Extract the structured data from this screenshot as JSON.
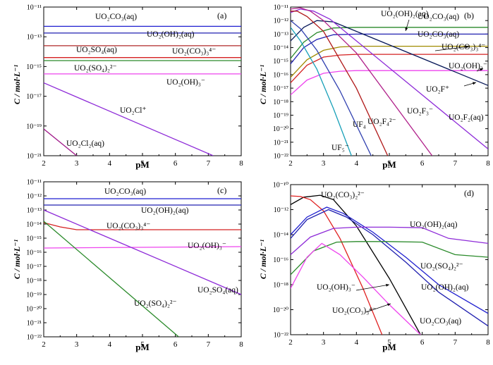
{
  "figure": {
    "xlabel": "pM",
    "ylabel": "C / mol·L⁻¹"
  },
  "chart_data": [
    {
      "panel": "(a)",
      "type": "line",
      "xlabel": "pM",
      "ylabel": "C / mol·L⁻¹",
      "xlim": [
        2,
        8
      ],
      "ylim_log10": [
        -21,
        -11
      ],
      "x_ticks": [
        2,
        3,
        4,
        5,
        6,
        7,
        8
      ],
      "y_ticks": [
        {
          "exp": -11,
          "label": "10⁻¹¹"
        },
        {
          "exp": -13,
          "label": "10⁻¹³"
        },
        {
          "exp": -15,
          "label": "10⁻¹⁵"
        },
        {
          "exp": -17,
          "label": "10⁻¹⁷"
        },
        {
          "exp": -19,
          "label": "10⁻¹⁹"
        },
        {
          "exp": -21,
          "label": "10⁻²¹"
        }
      ],
      "series": [
        {
          "name": "UO₂CO₃(aq)",
          "color": "#1f1fd0",
          "x": [
            2,
            8
          ],
          "log10_y": [
            -12.3,
            -12.3
          ]
        },
        {
          "name": "UO₂(OH)₂(aq)",
          "color": "#2020b0",
          "x": [
            2,
            8
          ],
          "log10_y": [
            -12.75,
            -12.75
          ]
        },
        {
          "name": "UO₂(CO₃)₃⁴⁻",
          "color": "#b02828",
          "x": [
            2,
            8
          ],
          "log10_y": [
            -13.6,
            -13.6
          ]
        },
        {
          "name": "UO₂SO₄(aq)",
          "color": "#d42020",
          "x": [
            2,
            8
          ],
          "log10_y": [
            -14.4,
            -14.4
          ]
        },
        {
          "name": "UO₂(SO₄)₂²⁻",
          "color": "#2a8a2a",
          "x": [
            2,
            8
          ],
          "log10_y": [
            -14.6,
            -14.6
          ]
        },
        {
          "name": "UO₂(OH)₃⁻",
          "color": "#ee44ee",
          "x": [
            2,
            8
          ],
          "log10_y": [
            -15.5,
            -15.5
          ]
        },
        {
          "name": "UO₂Cl⁺",
          "color": "#8e2bd8",
          "x": [
            2,
            7.15
          ],
          "log10_y": [
            -16.1,
            -21
          ]
        },
        {
          "name": "UO₂Cl₂(aq)",
          "color": "#a01a8a",
          "x": [
            2,
            3
          ],
          "log10_y": [
            -19.2,
            -21
          ]
        }
      ],
      "labels": [
        "UO₂CO₃(aq)",
        "UO₂(OH)₂(aq)",
        "UO₂SO₄(aq)",
        "UO₂(CO₃)₃⁴⁻",
        "UO₂(SO₄)₂²⁻",
        "UO₂(OH)₃⁻",
        "UO₂Cl⁺",
        "UO₂Cl₂(aq)"
      ]
    },
    {
      "panel": "(b)",
      "type": "line",
      "xlabel": "pM",
      "ylabel": "C / mol·L⁻¹",
      "xlim": [
        2,
        8
      ],
      "ylim_log10": [
        -22,
        -11
      ],
      "x_ticks": [
        2,
        3,
        4,
        5,
        6,
        7,
        8
      ],
      "y_ticks": [
        {
          "exp": -11,
          "label": "10⁻¹¹"
        },
        {
          "exp": -12,
          "label": "10⁻¹²"
        },
        {
          "exp": -13,
          "label": "10⁻¹³"
        },
        {
          "exp": -14,
          "label": "10⁻¹⁴"
        },
        {
          "exp": -15,
          "label": "10⁻¹⁵"
        },
        {
          "exp": -16,
          "label": "10⁻¹⁶"
        },
        {
          "exp": -17,
          "label": "10⁻¹⁷"
        },
        {
          "exp": -18,
          "label": "10⁻¹⁸"
        },
        {
          "exp": -19,
          "label": "10⁻¹⁹"
        },
        {
          "exp": -20,
          "label": "10⁻²⁰"
        },
        {
          "exp": -21,
          "label": "10⁻²¹"
        },
        {
          "exp": -22,
          "label": "10⁻²²"
        }
      ],
      "series": [
        {
          "name": "UO₂CO₃(aq)",
          "color": "#2a8a2a",
          "x": [
            2,
            2.4,
            2.8,
            3.3,
            4,
            8
          ],
          "log10_y": [
            -14.8,
            -13.6,
            -12.9,
            -12.55,
            -12.5,
            -12.5
          ]
        },
        {
          "name": "UO₂(OH)₂(aq)",
          "color": "#2020b0",
          "x": [
            2,
            2.4,
            2.8,
            3.3,
            4,
            8
          ],
          "log10_y": [
            -15.2,
            -14.0,
            -13.4,
            -13.05,
            -13.0,
            -13.0
          ]
        },
        {
          "name": "UO₂(CO₃)₃⁴⁻",
          "color": "#a08a00",
          "x": [
            2,
            2.5,
            3,
            3.5,
            4,
            8
          ],
          "log10_y": [
            -16.2,
            -14.9,
            -14.2,
            -13.95,
            -13.9,
            -13.9
          ]
        },
        {
          "name": "UO₂(OH)₃⁻",
          "color": "#d42020",
          "x": [
            2,
            2.5,
            3,
            3.5,
            4,
            8
          ],
          "log10_y": [
            -16.6,
            -15.3,
            -14.7,
            -14.55,
            -14.5,
            -14.5
          ]
        },
        {
          "name": "UO₂(SO₄)₂²⁻",
          "color": "#ee44ee",
          "x": [
            2,
            2.5,
            3,
            3.5,
            4,
            8
          ],
          "log10_y": [
            -17.5,
            -16.4,
            -15.9,
            -15.75,
            -15.7,
            -15.7
          ]
        },
        {
          "name": "UO₂F⁺",
          "color": "#0a1a5a",
          "x": [
            2,
            2.4,
            2.8,
            3.3,
            4,
            8
          ],
          "log10_y": [
            -13.5,
            -12.5,
            -12.0,
            -12.1,
            -12.8,
            -16.8
          ]
        },
        {
          "name": "UO₂F₂(aq)",
          "color": "#8e2bd8",
          "x": [
            2,
            2.3,
            2.7,
            3.2,
            4,
            8
          ],
          "log10_y": [
            -11.4,
            -11.15,
            -11.3,
            -11.9,
            -13.5,
            -21.5
          ]
        },
        {
          "name": "UO₂F₃⁻",
          "color": "#b0208a",
          "x": [
            2,
            2.3,
            2.6,
            3,
            4,
            6.3
          ],
          "log10_y": [
            -11.15,
            -11.05,
            -11.3,
            -12.0,
            -14.4,
            -22
          ]
        },
        {
          "name": "UO₂F₄²⁻",
          "color": "#b01818",
          "x": [
            2,
            2.2,
            2.5,
            3,
            4,
            4.95
          ],
          "log10_y": [
            -11.3,
            -11.3,
            -11.7,
            -12.8,
            -17.0,
            -22
          ]
        },
        {
          "name": "UF₄",
          "color": "#3040b0",
          "x": [
            2,
            2.3,
            2.8,
            3.5,
            4.45
          ],
          "log10_y": [
            -12.0,
            -12.6,
            -14.2,
            -17.2,
            -22
          ]
        },
        {
          "name": "UF₅⁻",
          "color": "#18a0b8",
          "x": [
            2,
            2.3,
            2.8,
            3.3,
            3.85
          ],
          "log10_y": [
            -12.5,
            -13.5,
            -15.6,
            -18.5,
            -22
          ]
        }
      ],
      "labels": [
        "UO₂(OH)₂(aq)",
        "UO₂CO₃(aq)",
        "UO₂CO₃(aq)",
        "UO₂(CO₃)₃⁴⁻",
        "UO₂(OH)₃⁻",
        "UO₂F⁺",
        "UO₂F₄²⁻",
        "UO₂F₃⁻",
        "UO₂F₂(aq)",
        "UF₄",
        "UF₅⁻"
      ]
    },
    {
      "panel": "(c)",
      "type": "line",
      "xlabel": "pM",
      "ylabel": "C / mol·L⁻¹",
      "xlim": [
        2,
        8
      ],
      "ylim_log10": [
        -22,
        -11
      ],
      "x_ticks": [
        2,
        3,
        4,
        5,
        6,
        7,
        8
      ],
      "y_ticks": [
        {
          "exp": -11,
          "label": "10⁻¹¹"
        },
        {
          "exp": -12,
          "label": "10⁻¹²"
        },
        {
          "exp": -13,
          "label": "10⁻¹³"
        },
        {
          "exp": -14,
          "label": "10⁻¹⁴"
        },
        {
          "exp": -15,
          "label": "10⁻¹⁵"
        },
        {
          "exp": -16,
          "label": "10⁻¹⁶"
        },
        {
          "exp": -17,
          "label": "10⁻¹⁷"
        },
        {
          "exp": -18,
          "label": "10⁻¹⁸"
        },
        {
          "exp": -19,
          "label": "10⁻¹⁹"
        },
        {
          "exp": -20,
          "label": "10⁻²⁰"
        },
        {
          "exp": -21,
          "label": "10⁻²¹"
        },
        {
          "exp": -22,
          "label": "10⁻²²"
        }
      ],
      "series": [
        {
          "name": "UO₂CO₃(aq)",
          "color": "#1f1fd0",
          "x": [
            2,
            8
          ],
          "log10_y": [
            -12.2,
            -12.2
          ]
        },
        {
          "name": "UO₂(OH)₂(aq)",
          "color": "#2020b0",
          "x": [
            2,
            8
          ],
          "log10_y": [
            -12.65,
            -12.65
          ]
        },
        {
          "name": "UO₂(CO₃)₃⁴⁻",
          "color": "#d42020",
          "x": [
            2,
            2.5,
            3,
            4,
            8
          ],
          "log10_y": [
            -13.9,
            -14.2,
            -14.4,
            -14.4,
            -14.4
          ]
        },
        {
          "name": "UO₂(OH)₃⁻",
          "color": "#ee44ee",
          "x": [
            2,
            8
          ],
          "log10_y": [
            -15.7,
            -15.6
          ]
        },
        {
          "name": "UO₂SO₄(aq)",
          "color": "#8e2bd8",
          "x": [
            2,
            8
          ],
          "log10_y": [
            -13.0,
            -19.0
          ]
        },
        {
          "name": "UO₂(SO₄)₂²⁻",
          "color": "#2a8a2a",
          "x": [
            2,
            6.1
          ],
          "log10_y": [
            -13.8,
            -22
          ]
        }
      ],
      "labels": [
        "UO₂CO₃(aq)",
        "UO₂(OH)₂(aq)",
        "UO₂(CO₃)₃⁴⁻",
        "UO₂(OH)₃⁻",
        "UO₂SO₄(aq)",
        "UO₂(SO₄)₂²⁻"
      ]
    },
    {
      "panel": "(d)",
      "type": "line",
      "xlabel": "pM",
      "ylabel": "C / mol·L⁻¹",
      "xlim": [
        2,
        8
      ],
      "ylim_log10": [
        -22,
        -10
      ],
      "x_ticks": [
        2,
        3,
        4,
        5,
        6,
        7,
        8
      ],
      "y_ticks": [
        {
          "exp": -10,
          "label": "10⁻¹⁰"
        },
        {
          "exp": -12,
          "label": "10⁻¹²"
        },
        {
          "exp": -14,
          "label": "10⁻¹⁴"
        },
        {
          "exp": -16,
          "label": "10⁻¹⁶"
        },
        {
          "exp": -18,
          "label": "10⁻¹⁸"
        },
        {
          "exp": -20,
          "label": "10⁻²⁰"
        },
        {
          "exp": -22,
          "label": "10⁻²²"
        }
      ],
      "series": [
        {
          "name": "UO₂(CO₃)₂²⁻",
          "color": "#000000",
          "x": [
            2,
            2.4,
            2.9,
            3.3,
            4,
            5,
            5.95
          ],
          "log10_y": [
            -11.6,
            -11.0,
            -10.85,
            -11.2,
            -13.3,
            -17.5,
            -22
          ]
        },
        {
          "name": "UO₂(CO₃)₃⁴⁻",
          "color": "#e02020",
          "x": [
            2,
            2.3,
            2.6,
            3,
            3.5,
            4.2,
            4.78
          ],
          "log10_y": [
            -10.9,
            -10.95,
            -11.2,
            -12.1,
            -14.3,
            -18.3,
            -22
          ]
        },
        {
          "name": "UO₂(OH)₂(aq) upper",
          "color": "#1f1fd0",
          "x": [
            2,
            2.5,
            3.1,
            3.6,
            4.5,
            5.5,
            6.5,
            8
          ],
          "log10_y": [
            -14.0,
            -12.6,
            -11.8,
            -12.3,
            -13.8,
            -15.8,
            -18.0,
            -20.3
          ]
        },
        {
          "name": "UO₂CO₃(aq)",
          "color": "#2020b0",
          "x": [
            2,
            2.5,
            3.15,
            3.7,
            4.5,
            5.5,
            6.5,
            8
          ],
          "log10_y": [
            -14.3,
            -12.8,
            -12.0,
            -12.6,
            -14.0,
            -16.2,
            -18.6,
            -21.3
          ]
        },
        {
          "name": "UO₂(OH)₂(aq)",
          "color": "#8e2bd8",
          "x": [
            2,
            2.6,
            3.3,
            4,
            5,
            6,
            6.8,
            8
          ],
          "log10_y": [
            -15.6,
            -14.2,
            -13.5,
            -13.4,
            -13.4,
            -13.45,
            -14.3,
            -14.7
          ]
        },
        {
          "name": "UO₂(SO₄)₂²⁻",
          "color": "#2a8a2a",
          "x": [
            2,
            2.7,
            3.4,
            4,
            5,
            6,
            7,
            8
          ],
          "log10_y": [
            -17.2,
            -15.3,
            -14.6,
            -14.55,
            -14.55,
            -14.6,
            -15.6,
            -15.8
          ]
        },
        {
          "name": "UO₂(OH)₃⁻",
          "color": "#ee44ee",
          "x": [
            2,
            2.5,
            2.95,
            3.5,
            4.2,
            5,
            5.95
          ],
          "log10_y": [
            -18.3,
            -15.8,
            -14.7,
            -15.6,
            -17.4,
            -19.6,
            -22
          ]
        }
      ],
      "labels": [
        "UO₂(CO₃)₂²⁻",
        "UO₂(OH)₂(aq)",
        "UO₂(SO₄)₂²⁻",
        "UO₂(OH)₂(aq)",
        "UO₂(OH)₃⁻",
        "UO₂CO₃(aq)",
        "UO₂(CO₃)₃⁴⁻"
      ]
    }
  ]
}
